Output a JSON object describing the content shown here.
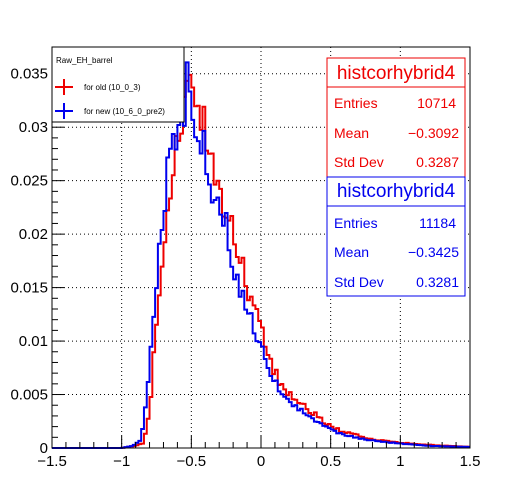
{
  "chart_data": {
    "type": "histogram",
    "xlim": [
      -1.5,
      1.5
    ],
    "ylim": [
      0,
      0.0375
    ],
    "bin_width": 0.02,
    "x_ticks": [
      -1.5,
      -1,
      -0.5,
      0,
      0.5,
      1,
      1.5
    ],
    "x_tick_labels": [
      "−1.5",
      "−1",
      "−0.5",
      "0",
      "0.5",
      "1",
      "1.5"
    ],
    "y_ticks": [
      0,
      0.005,
      0.01,
      0.015,
      0.02,
      0.025,
      0.03,
      0.035
    ],
    "y_tick_labels": [
      "0",
      "0.005",
      "0.01",
      "0.015",
      "0.02",
      "0.025",
      "0.03",
      "0.035"
    ],
    "grid": true,
    "legend": {
      "title": "Raw_EH_barrel",
      "placement": "top-left",
      "entries": [
        "for old (10_0_3)",
        "for new (10_6_0_pre2)"
      ]
    },
    "series": [
      {
        "name": "for old (10_0_3)",
        "color": "#ee0000",
        "stats": {
          "title": "histcorhybrid4",
          "rows": [
            {
              "label": "Entries",
              "value": "10714"
            },
            {
              "label": "Mean",
              "value": "−0.3092"
            },
            {
              "label": "Std Dev",
              "value": "0.3287"
            }
          ]
        },
        "key_points": [
          [
            -1.0,
            0
          ],
          [
            -0.9,
            0.0002
          ],
          [
            -0.84,
            0.0005
          ],
          [
            -0.8,
            0.0035
          ],
          [
            -0.76,
            0.01
          ],
          [
            -0.72,
            0.0145
          ],
          [
            -0.68,
            0.0195
          ],
          [
            -0.65,
            0.0245
          ],
          [
            -0.62,
            0.029
          ],
          [
            -0.58,
            0.03
          ],
          [
            -0.55,
            0.032
          ],
          [
            -0.52,
            0.034
          ],
          [
            -0.5,
            0.0355
          ],
          [
            -0.47,
            0.032
          ],
          [
            -0.44,
            0.031
          ],
          [
            -0.4,
            0.0295
          ],
          [
            -0.36,
            0.0265
          ],
          [
            -0.32,
            0.0245
          ],
          [
            -0.28,
            0.023
          ],
          [
            -0.24,
            0.0215
          ],
          [
            -0.2,
            0.02
          ],
          [
            -0.16,
            0.018
          ],
          [
            -0.12,
            0.016
          ],
          [
            -0.08,
            0.014
          ],
          [
            -0.04,
            0.0125
          ],
          [
            0.0,
            0.011
          ],
          [
            0.05,
            0.0085
          ],
          [
            0.1,
            0.007
          ],
          [
            0.15,
            0.006
          ],
          [
            0.2,
            0.005
          ],
          [
            0.3,
            0.004
          ],
          [
            0.4,
            0.003
          ],
          [
            0.5,
            0.002
          ],
          [
            0.6,
            0.0015
          ],
          [
            0.8,
            0.0008
          ],
          [
            1.0,
            0.0005
          ],
          [
            1.2,
            0.0003
          ],
          [
            1.5,
            0.0001
          ]
        ]
      },
      {
        "name": "for new (10_6_0_pre2)",
        "color": "#0000ee",
        "stats": {
          "title": "histcorhybrid4",
          "rows": [
            {
              "label": "Entries",
              "value": "11184"
            },
            {
              "label": "Mean",
              "value": "−0.3425"
            },
            {
              "label": "Std Dev",
              "value": "0.3281"
            }
          ]
        },
        "key_points": [
          [
            -1.0,
            0
          ],
          [
            -0.92,
            0.0002
          ],
          [
            -0.86,
            0.0008
          ],
          [
            -0.82,
            0.0045
          ],
          [
            -0.78,
            0.011
          ],
          [
            -0.74,
            0.017
          ],
          [
            -0.7,
            0.022
          ],
          [
            -0.67,
            0.026
          ],
          [
            -0.64,
            0.0295
          ],
          [
            -0.6,
            0.0305
          ],
          [
            -0.57,
            0.031
          ],
          [
            -0.54,
            0.033
          ],
          [
            -0.52,
            0.036
          ],
          [
            -0.49,
            0.031
          ],
          [
            -0.46,
            0.03
          ],
          [
            -0.42,
            0.0285
          ],
          [
            -0.38,
            0.026
          ],
          [
            -0.34,
            0.024
          ],
          [
            -0.3,
            0.0225
          ],
          [
            -0.26,
            0.021
          ],
          [
            -0.22,
            0.019
          ],
          [
            -0.18,
            0.0165
          ],
          [
            -0.14,
            0.0145
          ],
          [
            -0.1,
            0.013
          ],
          [
            -0.06,
            0.0115
          ],
          [
            -0.02,
            0.01
          ],
          [
            0.03,
            0.008
          ],
          [
            0.08,
            0.0065
          ],
          [
            0.13,
            0.0055
          ],
          [
            0.2,
            0.0045
          ],
          [
            0.3,
            0.0033
          ],
          [
            0.4,
            0.0024
          ],
          [
            0.5,
            0.0017
          ],
          [
            0.6,
            0.0012
          ],
          [
            0.8,
            0.0007
          ],
          [
            1.0,
            0.0004
          ],
          [
            1.2,
            0.0002
          ],
          [
            1.5,
            0.0001
          ]
        ]
      }
    ]
  }
}
